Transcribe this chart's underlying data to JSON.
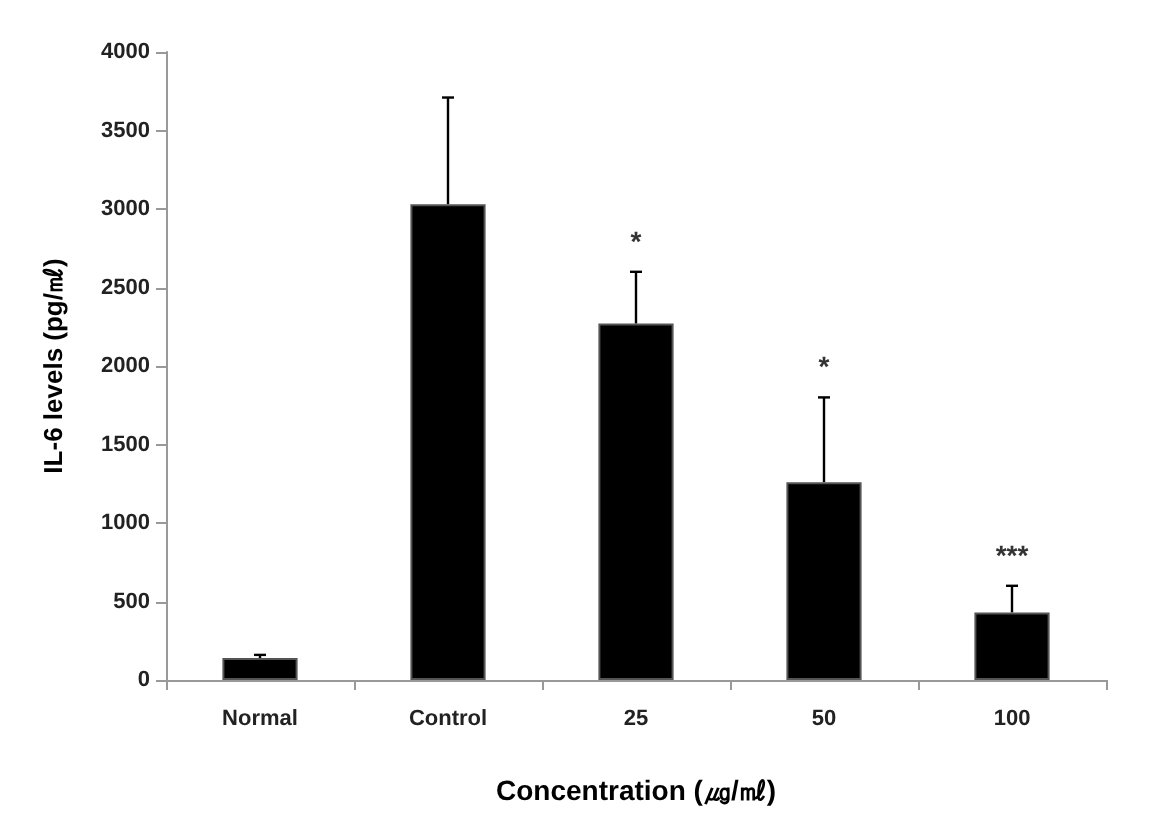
{
  "chart_data": {
    "type": "bar",
    "xlabel": "Concentration (㎍/㎖)",
    "ylabel": "IL-6 levels (pg/㎖)",
    "categories": [
      "Normal",
      "Control",
      "25",
      "50",
      "100"
    ],
    "values": [
      140,
      3030,
      2270,
      1260,
      430
    ],
    "errors": [
      [
        140,
        160
      ],
      [
        3030,
        3710
      ],
      [
        2270,
        2600
      ],
      [
        1260,
        1800
      ],
      [
        430,
        600
      ]
    ],
    "color": "#000000",
    "ylim": [
      0,
      4000
    ],
    "yticks": [
      0,
      500,
      1000,
      1500,
      2000,
      2500,
      3000,
      3500,
      4000
    ],
    "grid": false,
    "annotations": [
      "*",
      "*",
      "***"
    ]
  }
}
